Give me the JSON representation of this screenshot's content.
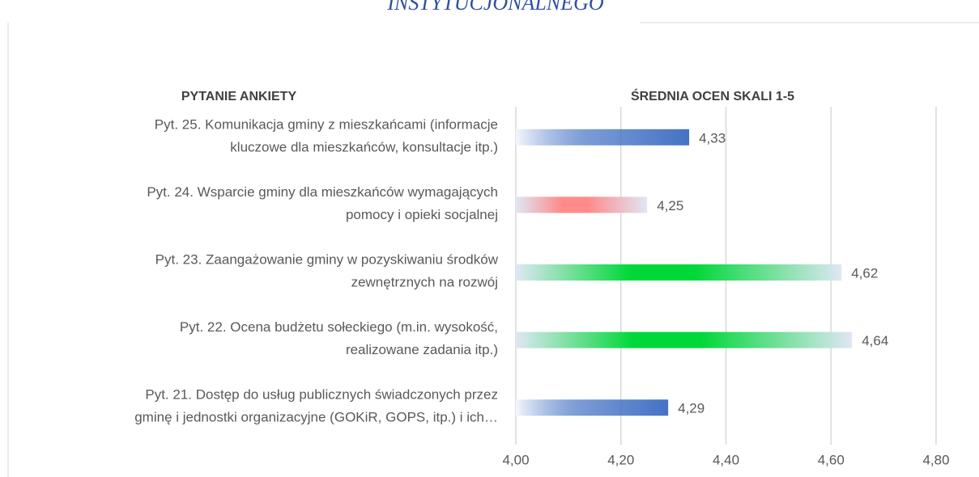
{
  "chart_data": {
    "type": "bar",
    "orientation": "horizontal",
    "title": "INSTYTUCJONALNEGO",
    "category_header": "PYTANIE ANKIETY",
    "value_header": "ŚREDNIA OCEN SKALI 1-5",
    "categories": [
      [
        "Pyt. 25. Komunikacja gminy z mieszkańcami (informacje",
        "kluczowe dla mieszkańców, konsultacje itp.)"
      ],
      [
        "Pyt. 24. Wsparcie gminy dla mieszkańców wymagających",
        "pomocy i opieki socjalnej"
      ],
      [
        "Pyt. 23. Zaangażowanie gminy w pozyskiwaniu środków",
        "zewnętrznych na rozwój"
      ],
      [
        "Pyt. 22. Ocena budżetu sołeckiego (m.in. wysokość,",
        "realizowane zadania itp.)"
      ],
      [
        "Pyt. 21. Dostęp do usług publicznych świadczonych przez",
        "gminę i jednostki organizacyjne (GOKiR, GOPS, itp.) i ich…"
      ]
    ],
    "values": [
      4.33,
      4.25,
      4.62,
      4.64,
      4.29
    ],
    "value_labels": [
      "4,33",
      "4,25",
      "4,62",
      "4,64",
      "4,29"
    ],
    "colors": [
      "#4472c4",
      "#ff8a8a",
      "#00d83a",
      "#00d83a",
      "#4472c4"
    ],
    "xlim": [
      4,
      4.8
    ],
    "xticks": [
      {
        "value": 4,
        "label": "4,00"
      },
      {
        "value": 4.2,
        "label": "4,20"
      },
      {
        "value": 4.4,
        "label": "4,40"
      },
      {
        "value": 4.6,
        "label": "4,60"
      },
      {
        "value": 4.8,
        "label": "4,80"
      }
    ],
    "grid": true
  }
}
